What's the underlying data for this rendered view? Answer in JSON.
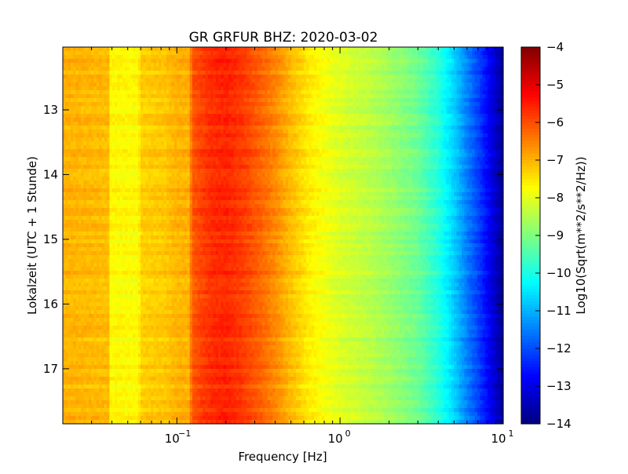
{
  "chart_data": {
    "type": "heatmap",
    "title": "GR GRFUR BHZ: 2020-03-02",
    "xlabel": "Frequency [Hz]",
    "ylabel": "Lokalzeit (UTC + 1 Stunde)",
    "x_scale": "log",
    "xlim": [
      0.02,
      10
    ],
    "x_ticks": [
      {
        "value": 0.1,
        "base": "10",
        "exp": "-1"
      },
      {
        "value": 1,
        "base": "10",
        "exp": "0"
      },
      {
        "value": 10,
        "base": "10",
        "exp": "1"
      }
    ],
    "ylim": [
      12.03,
      17.85
    ],
    "y_inverted": true,
    "y_ticks": [
      13,
      14,
      15,
      16,
      17
    ],
    "y_tick_labels": [
      "13",
      "14",
      "15",
      "16",
      "17"
    ],
    "colormap": "jet",
    "colorbar": {
      "label": "Log10(Sqrt(m**2/s**2/Hz))",
      "range": [
        -14,
        -4
      ],
      "ticks": [
        -4,
        -5,
        -6,
        -7,
        -8,
        -9,
        -10,
        -11,
        -12,
        -13,
        -14
      ],
      "tick_labels": [
        "−4",
        "−5",
        "−6",
        "−7",
        "−8",
        "−9",
        "−10",
        "−11",
        "−12",
        "−13",
        "−14"
      ]
    },
    "frequency_profile": {
      "frequency_hz": [
        0.02,
        0.038,
        0.039,
        0.058,
        0.06,
        0.085,
        0.1,
        0.118,
        0.125,
        0.16,
        0.2,
        0.25,
        0.32,
        0.4,
        0.5,
        0.65,
        0.8,
        1.0,
        1.5,
        2.0,
        3.0,
        4.0,
        5.0,
        6.0,
        7.0,
        8.0,
        9.0,
        10.0
      ],
      "log10_amplitude": [
        -7.0,
        -7.1,
        -7.7,
        -7.75,
        -7.3,
        -7.2,
        -7.0,
        -7.0,
        -6.1,
        -5.7,
        -5.6,
        -5.8,
        -6.2,
        -6.6,
        -7.1,
        -7.6,
        -7.85,
        -8.1,
        -8.4,
        -8.7,
        -9.2,
        -9.9,
        -10.7,
        -11.5,
        -12.1,
        -12.7,
        -13.3,
        -13.8
      ]
    }
  }
}
